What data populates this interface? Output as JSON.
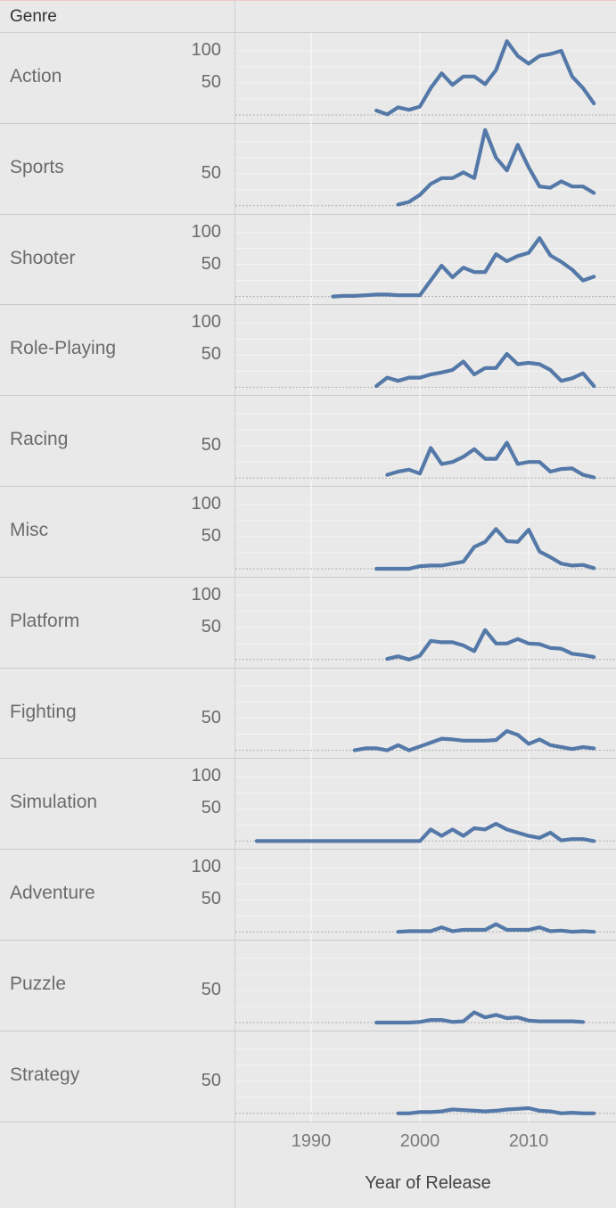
{
  "header": {
    "label": "Genre"
  },
  "chart_data": {
    "type": "line",
    "title": "",
    "xlabel": "Year of Release",
    "ylabel": "",
    "xlim": [
      1983,
      2017
    ],
    "ylim": [
      0,
      120
    ],
    "x_ticks": [
      "1990",
      "2000",
      "2010"
    ],
    "x_tick_values": [
      1990,
      2000,
      2010
    ],
    "y_ticks_full": [
      "100",
      "50"
    ],
    "y_ticks_half": [
      "50"
    ],
    "grid": true,
    "line_color": "#5479a8",
    "series": [
      {
        "name": "Action",
        "y_ticks": "full",
        "x": [
          1996,
          1997,
          1998,
          1999,
          2000,
          2001,
          2002,
          2003,
          2004,
          2005,
          2006,
          2007,
          2008,
          2009,
          2010,
          2011,
          2012,
          2013,
          2014,
          2015,
          2016
        ],
        "values": [
          7,
          1,
          12,
          8,
          13,
          42,
          65,
          47,
          60,
          60,
          48,
          70,
          115,
          92,
          80,
          92,
          95,
          100,
          60,
          42,
          18
        ]
      },
      {
        "name": "Sports",
        "x": [
          1998,
          1999,
          2000,
          2001,
          2002,
          2003,
          2004,
          2005,
          2006,
          2007,
          2008,
          2009,
          2010,
          2011,
          2012,
          2013,
          2014,
          2015,
          2016
        ],
        "values": [
          2,
          6,
          17,
          34,
          43,
          43,
          52,
          43,
          118,
          75,
          55,
          95,
          60,
          30,
          28,
          38,
          30,
          30,
          20
        ]
      },
      {
        "name": "Shooter",
        "y_ticks": "full",
        "x": [
          1992,
          1993,
          1994,
          1995,
          1996,
          1997,
          1998,
          1999,
          2000,
          2001,
          2002,
          2003,
          2004,
          2005,
          2006,
          2007,
          2008,
          2009,
          2010,
          2011,
          2012,
          2013,
          2014,
          2015,
          2016
        ],
        "values": [
          0,
          1,
          1,
          2,
          3,
          3,
          2,
          2,
          2,
          25,
          48,
          30,
          45,
          38,
          38,
          66,
          55,
          63,
          68,
          91,
          64,
          54,
          42,
          25,
          31
        ]
      },
      {
        "name": "Role-Playing",
        "y_ticks": "full",
        "x": [
          1996,
          1997,
          1998,
          1999,
          2000,
          2001,
          2002,
          2003,
          2004,
          2005,
          2006,
          2007,
          2008,
          2009,
          2010,
          2011,
          2012,
          2013,
          2014,
          2015,
          2016
        ],
        "values": [
          2,
          15,
          10,
          15,
          15,
          20,
          23,
          27,
          40,
          20,
          30,
          30,
          52,
          36,
          38,
          36,
          27,
          10,
          14,
          22,
          2
        ]
      },
      {
        "name": "Racing",
        "x": [
          1997,
          1998,
          1999,
          2000,
          2001,
          2002,
          2003,
          2004,
          2005,
          2006,
          2007,
          2008,
          2009,
          2010,
          2011,
          2012,
          2013,
          2014,
          2015,
          2016
        ],
        "values": [
          5,
          10,
          13,
          7,
          47,
          22,
          25,
          33,
          45,
          30,
          30,
          55,
          22,
          25,
          25,
          10,
          14,
          15,
          5,
          1
        ]
      },
      {
        "name": "Misc",
        "y_ticks": "full",
        "x": [
          1996,
          1997,
          1998,
          1999,
          2000,
          2001,
          2002,
          2003,
          2004,
          2005,
          2006,
          2007,
          2008,
          2009,
          2010,
          2011,
          2012,
          2013,
          2014,
          2015,
          2016
        ],
        "values": [
          0,
          0,
          0,
          0,
          4,
          5,
          5,
          8,
          11,
          34,
          42,
          62,
          43,
          42,
          61,
          27,
          18,
          8,
          5,
          6,
          1
        ]
      },
      {
        "name": "Platform",
        "y_ticks": "full",
        "x": [
          1997,
          1998,
          1999,
          2000,
          2001,
          2002,
          2003,
          2004,
          2005,
          2006,
          2007,
          2008,
          2009,
          2010,
          2011,
          2012,
          2013,
          2014,
          2015,
          2016
        ],
        "values": [
          1,
          5,
          0,
          6,
          29,
          27,
          27,
          22,
          13,
          46,
          25,
          25,
          32,
          25,
          24,
          18,
          17,
          9,
          7,
          4
        ]
      },
      {
        "name": "Fighting",
        "x": [
          1994,
          1995,
          1996,
          1997,
          1998,
          1999,
          2000,
          2001,
          2002,
          2003,
          2004,
          2005,
          2006,
          2007,
          2008,
          2009,
          2010,
          2011,
          2012,
          2013,
          2014,
          2015,
          2016
        ],
        "values": [
          0,
          3,
          3,
          0,
          8,
          0,
          6,
          12,
          18,
          17,
          15,
          15,
          15,
          16,
          30,
          24,
          10,
          17,
          8,
          5,
          2,
          5,
          3
        ]
      },
      {
        "name": "Simulation",
        "y_ticks": "full",
        "x": [
          1985,
          2000,
          2001,
          2002,
          2003,
          2004,
          2005,
          2006,
          2007,
          2008,
          2009,
          2010,
          2011,
          2012,
          2013,
          2014,
          2015,
          2016
        ],
        "values": [
          0,
          0,
          18,
          8,
          18,
          8,
          20,
          18,
          27,
          18,
          13,
          8,
          5,
          13,
          1,
          3,
          3,
          0
        ]
      },
      {
        "name": "Adventure",
        "y_ticks": "full",
        "x": [
          1998,
          1999,
          2000,
          2001,
          2002,
          2003,
          2004,
          2005,
          2006,
          2007,
          2008,
          2009,
          2010,
          2011,
          2012,
          2013,
          2014,
          2015,
          2016
        ],
        "values": [
          0,
          1,
          1,
          1,
          7,
          1,
          3,
          3,
          3,
          12,
          3,
          3,
          3,
          7,
          1,
          2,
          0,
          1,
          0
        ]
      },
      {
        "name": "Puzzle",
        "x": [
          1996,
          1997,
          1998,
          1999,
          2000,
          2001,
          2002,
          2003,
          2004,
          2005,
          2006,
          2007,
          2008,
          2009,
          2010,
          2011,
          2012,
          2013,
          2014,
          2015
        ],
        "values": [
          0,
          0,
          0,
          0,
          1,
          4,
          4,
          1,
          2,
          16,
          8,
          12,
          7,
          8,
          3,
          2,
          2,
          2,
          2,
          1
        ]
      },
      {
        "name": "Strategy",
        "x": [
          1998,
          1999,
          2000,
          2001,
          2002,
          2003,
          2004,
          2005,
          2006,
          2007,
          2008,
          2009,
          2010,
          2011,
          2012,
          2013,
          2014,
          2015,
          2016
        ],
        "values": [
          0,
          0,
          2,
          2,
          3,
          6,
          5,
          4,
          3,
          4,
          6,
          7,
          8,
          4,
          3,
          0,
          1,
          0,
          0
        ]
      }
    ]
  }
}
